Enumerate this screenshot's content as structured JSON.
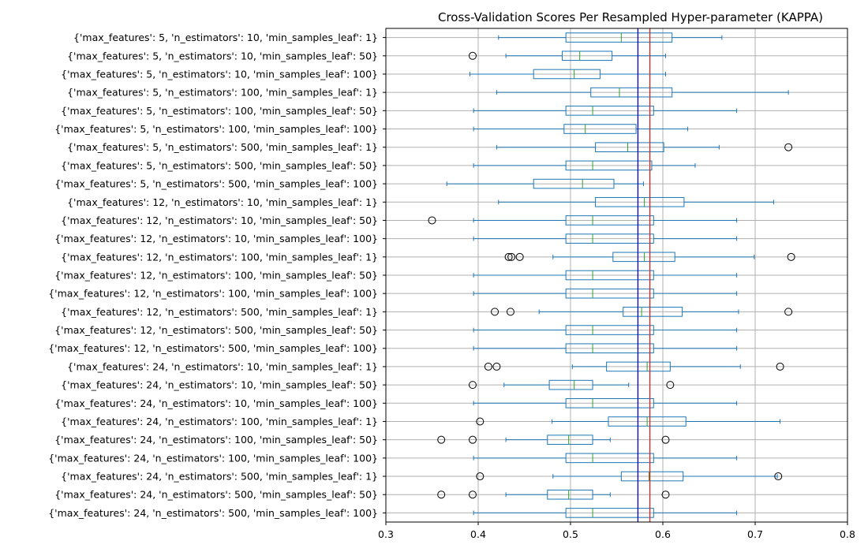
{
  "chart_data": {
    "type": "boxplot",
    "orientation": "horizontal",
    "title": "Cross-Validation Scores Per Resampled Hyper-parameter (KAPPA)",
    "xlabel": "",
    "ylabel": "",
    "xlim": [
      0.3,
      0.8
    ],
    "xticks": [
      0.3,
      0.4,
      0.5,
      0.6,
      0.7,
      0.8
    ],
    "xtick_labels": [
      "0.3",
      "0.4",
      "0.5",
      "0.6",
      "0.7",
      "0.8"
    ],
    "grid": true,
    "reference_lines": [
      {
        "x": 0.573,
        "color": "#0000cc"
      },
      {
        "x": 0.586,
        "color": "#e02020"
      }
    ],
    "colors": {
      "box": "#1f77b4",
      "median": "#2ca02c",
      "highlight_label": "#ff0000"
    },
    "categories": [
      {
        "label": "{'max_features': 5, 'n_estimators': 10, 'min_samples_leaf': 1}",
        "highlight": false,
        "whislo": 0.422,
        "q1": 0.495,
        "med": 0.555,
        "q3": 0.61,
        "whishi": 0.664,
        "fliers": []
      },
      {
        "label": "{'max_features': 5, 'n_estimators': 10, 'min_samples_leaf': 50}",
        "highlight": false,
        "whislo": 0.43,
        "q1": 0.491,
        "med": 0.51,
        "q3": 0.545,
        "whishi": 0.603,
        "fliers": [
          0.394
        ]
      },
      {
        "label": "{'max_features': 5, 'n_estimators': 10, 'min_samples_leaf': 100}",
        "highlight": false,
        "whislo": 0.391,
        "q1": 0.46,
        "med": 0.504,
        "q3": 0.532,
        "whishi": 0.603,
        "fliers": []
      },
      {
        "label": "{'max_features': 5, 'n_estimators': 100, 'min_samples_leaf': 1}",
        "highlight": false,
        "whislo": 0.42,
        "q1": 0.522,
        "med": 0.553,
        "q3": 0.61,
        "whishi": 0.736,
        "fliers": []
      },
      {
        "label": "{'max_features': 5, 'n_estimators': 100, 'min_samples_leaf': 50}",
        "highlight": false,
        "whislo": 0.395,
        "q1": 0.495,
        "med": 0.524,
        "q3": 0.59,
        "whishi": 0.68,
        "fliers": []
      },
      {
        "label": "{'max_features': 5, 'n_estimators': 100, 'min_samples_leaf': 100}",
        "highlight": false,
        "whislo": 0.395,
        "q1": 0.493,
        "med": 0.516,
        "q3": 0.571,
        "whishi": 0.627,
        "fliers": []
      },
      {
        "label": "{'max_features': 5, 'n_estimators': 500, 'min_samples_leaf': 1}",
        "highlight": false,
        "whislo": 0.42,
        "q1": 0.527,
        "med": 0.562,
        "q3": 0.601,
        "whishi": 0.661,
        "fliers": [
          0.736
        ]
      },
      {
        "label": "{'max_features': 5, 'n_estimators': 500, 'min_samples_leaf': 50}",
        "highlight": false,
        "whislo": 0.395,
        "q1": 0.495,
        "med": 0.524,
        "q3": 0.588,
        "whishi": 0.635,
        "fliers": []
      },
      {
        "label": "{'max_features': 5, 'n_estimators': 500, 'min_samples_leaf': 100}",
        "highlight": false,
        "whislo": 0.366,
        "q1": 0.46,
        "med": 0.513,
        "q3": 0.547,
        "whishi": 0.579,
        "fliers": []
      },
      {
        "label": "{'max_features': 12, 'n_estimators': 10, 'min_samples_leaf': 1}",
        "highlight": false,
        "whislo": 0.422,
        "q1": 0.527,
        "med": 0.58,
        "q3": 0.623,
        "whishi": 0.72,
        "fliers": []
      },
      {
        "label": "{'max_features': 12, 'n_estimators': 10, 'min_samples_leaf': 50}",
        "highlight": false,
        "whislo": 0.395,
        "q1": 0.495,
        "med": 0.524,
        "q3": 0.59,
        "whishi": 0.68,
        "fliers": [
          0.35
        ]
      },
      {
        "label": "{'max_features': 12, 'n_estimators': 10, 'min_samples_leaf': 100}",
        "highlight": false,
        "whislo": 0.395,
        "q1": 0.495,
        "med": 0.524,
        "q3": 0.59,
        "whishi": 0.68,
        "fliers": []
      },
      {
        "label": "{'max_features': 12, 'n_estimators': 100, 'min_samples_leaf': 1}",
        "highlight": false,
        "whislo": 0.481,
        "q1": 0.546,
        "med": 0.58,
        "q3": 0.613,
        "whishi": 0.699,
        "fliers": [
          0.433,
          0.436,
          0.445,
          0.739
        ]
      },
      {
        "label": "{'max_features': 12, 'n_estimators': 100, 'min_samples_leaf': 50}",
        "highlight": false,
        "whislo": 0.395,
        "q1": 0.495,
        "med": 0.524,
        "q3": 0.59,
        "whishi": 0.68,
        "fliers": []
      },
      {
        "label": "{'max_features': 12, 'n_estimators': 100, 'min_samples_leaf': 100}",
        "highlight": false,
        "whislo": 0.395,
        "q1": 0.495,
        "med": 0.524,
        "q3": 0.59,
        "whishi": 0.68,
        "fliers": []
      },
      {
        "label": "{'max_features': 12, 'n_estimators': 500, 'min_samples_leaf': 1}",
        "highlight": false,
        "whislo": 0.466,
        "q1": 0.557,
        "med": 0.577,
        "q3": 0.621,
        "whishi": 0.682,
        "fliers": [
          0.418,
          0.435,
          0.736
        ]
      },
      {
        "label": "{'max_features': 12, 'n_estimators': 500, 'min_samples_leaf': 50}",
        "highlight": false,
        "whislo": 0.395,
        "q1": 0.495,
        "med": 0.524,
        "q3": 0.59,
        "whishi": 0.68,
        "fliers": []
      },
      {
        "label": "{'max_features': 12, 'n_estimators': 500, 'min_samples_leaf': 100}",
        "highlight": false,
        "whislo": 0.395,
        "q1": 0.495,
        "med": 0.524,
        "q3": 0.59,
        "whishi": 0.68,
        "fliers": []
      },
      {
        "label": "{'max_features': 24, 'n_estimators': 10, 'min_samples_leaf': 1}",
        "highlight": false,
        "whislo": 0.502,
        "q1": 0.539,
        "med": 0.583,
        "q3": 0.608,
        "whishi": 0.684,
        "fliers": [
          0.411,
          0.42,
          0.727
        ]
      },
      {
        "label": "{'max_features': 24, 'n_estimators': 10, 'min_samples_leaf': 50}",
        "highlight": false,
        "whislo": 0.428,
        "q1": 0.477,
        "med": 0.504,
        "q3": 0.524,
        "whishi": 0.563,
        "fliers": [
          0.394,
          0.608
        ]
      },
      {
        "label": "{'max_features': 24, 'n_estimators': 10, 'min_samples_leaf': 100}",
        "highlight": false,
        "whislo": 0.395,
        "q1": 0.495,
        "med": 0.524,
        "q3": 0.59,
        "whishi": 0.68,
        "fliers": []
      },
      {
        "label": "{'max_features': 24, 'n_estimators': 100, 'min_samples_leaf': 1}",
        "highlight": false,
        "whislo": 0.48,
        "q1": 0.541,
        "med": 0.583,
        "q3": 0.625,
        "whishi": 0.727,
        "fliers": [
          0.402
        ]
      },
      {
        "label": "{'max_features': 24, 'n_estimators': 100, 'min_samples_leaf': 50}",
        "highlight": false,
        "whislo": 0.43,
        "q1": 0.475,
        "med": 0.498,
        "q3": 0.524,
        "whishi": 0.543,
        "fliers": [
          0.36,
          0.394,
          0.603
        ]
      },
      {
        "label": "{'max_features': 24, 'n_estimators': 100, 'min_samples_leaf': 100}",
        "highlight": false,
        "whislo": 0.395,
        "q1": 0.495,
        "med": 0.524,
        "q3": 0.59,
        "whishi": 0.68,
        "fliers": []
      },
      {
        "label": "{'max_features': 24, 'n_estimators': 500, 'min_samples_leaf': 1}",
        "highlight": true,
        "whislo": 0.481,
        "q1": 0.555,
        "med": 0.585,
        "q3": 0.622,
        "whishi": 0.724,
        "fliers": [
          0.402,
          0.725
        ]
      },
      {
        "label": "{'max_features': 24, 'n_estimators': 500, 'min_samples_leaf': 50}",
        "highlight": false,
        "whislo": 0.43,
        "q1": 0.475,
        "med": 0.498,
        "q3": 0.524,
        "whishi": 0.543,
        "fliers": [
          0.36,
          0.394,
          0.603
        ]
      },
      {
        "label": "{'max_features': 24, 'n_estimators': 500, 'min_samples_leaf': 100}",
        "highlight": false,
        "whislo": 0.395,
        "q1": 0.495,
        "med": 0.524,
        "q3": 0.59,
        "whishi": 0.68,
        "fliers": []
      }
    ]
  }
}
